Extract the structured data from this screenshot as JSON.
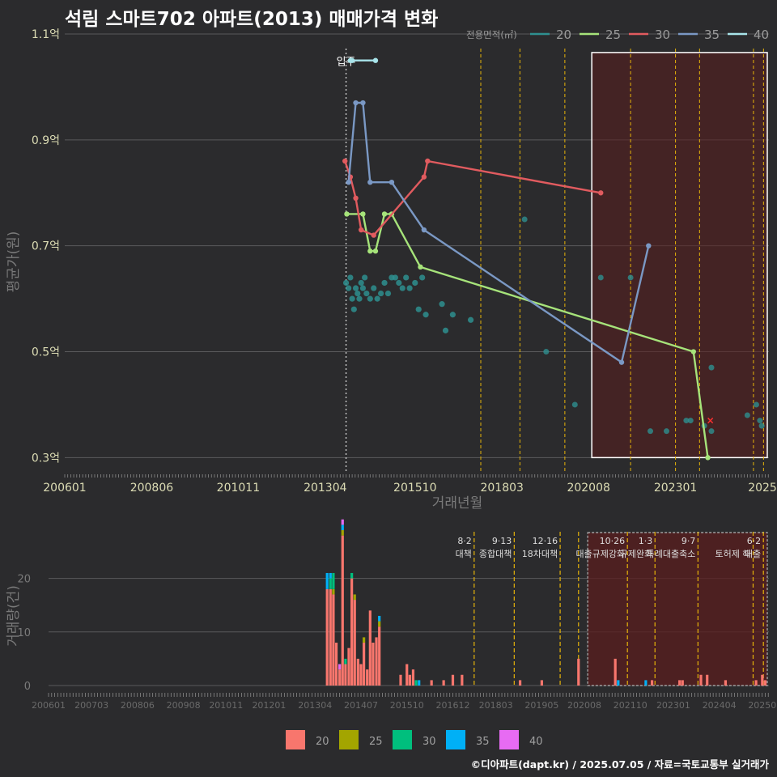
{
  "title": "석림 스마트702 아파트(2013) 매매가격 변화",
  "credit": "©디아파트(dapt.kr) / 2025.07.05 / 자료=국토교통부 실거래가",
  "colors": {
    "20": "#2e8f8f",
    "25": "#a6e37a",
    "30": "#e15b5f",
    "35": "#7a98c4",
    "40": "#a8e4ea",
    "bar20": "#f8766d",
    "bar25": "#a3a500",
    "bar30": "#00bf7d",
    "bar35": "#00b0f6",
    "bar40": "#e76bf3",
    "policy": "#e6b40a",
    "highlight": "#5a1e1e"
  },
  "chart_data": [
    {
      "type": "line",
      "title": "석림 스마트702 아파트(2013) 매매가격 변화",
      "xlabel": "거래년월",
      "ylabel": "평균가(원)",
      "x_unit": "year-fraction",
      "xlim": [
        2006.0,
        2025.6
      ],
      "ylim": [
        0.27,
        1.1
      ],
      "y_ticks": [
        {
          "value": 0.3,
          "label": "0.3억"
        },
        {
          "value": 0.5,
          "label": "0.5억"
        },
        {
          "value": 0.7,
          "label": "0.7억"
        },
        {
          "value": 0.9,
          "label": "0.9억"
        },
        {
          "value": 1.1,
          "label": "1.1억"
        }
      ],
      "x_ticks": [
        {
          "value": 2006.0,
          "label": "200601"
        },
        {
          "value": 2008.42,
          "label": "200806"
        },
        {
          "value": 2010.83,
          "label": "201011"
        },
        {
          "value": 2013.25,
          "label": "201304"
        },
        {
          "value": 2015.75,
          "label": "201510"
        },
        {
          "value": 2018.17,
          "label": "201803"
        },
        {
          "value": 2020.58,
          "label": "202008"
        },
        {
          "value": 2023.0,
          "label": "202301"
        },
        {
          "value": 2025.42,
          "label": "2025"
        }
      ],
      "legend_title": "전용면적(㎡)",
      "legend": [
        "20",
        "25",
        "30",
        "35",
        "40"
      ],
      "move_in_label": "입주",
      "move_in_x": 2013.83,
      "highlight_range": [
        2020.67,
        2025.6
      ],
      "policy_lines": [
        2017.58,
        2018.67,
        2019.92,
        2021.75,
        2023.0,
        2023.67,
        2025.17,
        2025.45
      ],
      "series": [
        {
          "name": "20",
          "color": "#2e8f8f",
          "x": [
            2013.83,
            2013.9,
            2013.95,
            2014.0,
            2014.05,
            2014.1,
            2014.15,
            2014.2,
            2014.25,
            2014.3,
            2014.35,
            2014.4,
            2014.5,
            2014.6,
            2014.7,
            2014.8,
            2014.9,
            2015.0,
            2015.1,
            2015.2,
            2015.3,
            2015.4,
            2015.5,
            2015.6,
            2015.75,
            2015.85,
            2015.95,
            2016.05,
            2016.5,
            2016.6,
            2016.8,
            2017.3
          ],
          "y": [
            0.63,
            0.62,
            0.64,
            0.6,
            0.58,
            0.62,
            0.61,
            0.6,
            0.63,
            0.62,
            0.64,
            0.61,
            0.6,
            0.62,
            0.6,
            0.61,
            0.63,
            0.61,
            0.64,
            0.64,
            0.63,
            0.62,
            0.64,
            0.62,
            0.63,
            0.58,
            0.64,
            0.57,
            0.59,
            0.54,
            0.57,
            0.56
          ]
        },
        {
          "name": "25",
          "color": "#a6e37a",
          "x": [
            2013.85,
            2014.3,
            2014.5,
            2014.65,
            2014.9,
            2015.1,
            2015.9,
            2023.5,
            2023.9
          ],
          "y": [
            0.76,
            0.76,
            0.69,
            0.69,
            0.76,
            0.76,
            0.66,
            0.5,
            0.3
          ]
        },
        {
          "name": "30",
          "color": "#e15b5f",
          "x": [
            2013.8,
            2013.95,
            2014.1,
            2014.25,
            2014.6,
            2016.0,
            2016.1,
            2020.92
          ],
          "y": [
            0.86,
            0.83,
            0.79,
            0.73,
            0.72,
            0.83,
            0.86,
            0.8
          ]
        },
        {
          "name": "35",
          "color": "#7a98c4",
          "x": [
            2013.9,
            2014.1,
            2014.3,
            2014.5,
            2015.1,
            2016.0,
            2021.5,
            2022.25
          ],
          "y": [
            0.82,
            0.97,
            0.97,
            0.82,
            0.82,
            0.73,
            0.48,
            0.7
          ]
        },
        {
          "name": "40",
          "color": "#a8e4ea",
          "x": [
            2013.95,
            2014.0,
            2014.65
          ],
          "y": [
            1.05,
            1.05,
            1.05
          ]
        }
      ],
      "scatter": [
        {
          "x": 2018.8,
          "y": 0.75
        },
        {
          "x": 2019.4,
          "y": 0.5
        },
        {
          "x": 2020.2,
          "y": 0.4
        },
        {
          "x": 2020.92,
          "y": 0.64
        },
        {
          "x": 2021.75,
          "y": 0.64
        },
        {
          "x": 2022.3,
          "y": 0.35
        },
        {
          "x": 2022.75,
          "y": 0.35
        },
        {
          "x": 2023.3,
          "y": 0.37
        },
        {
          "x": 2023.42,
          "y": 0.37
        },
        {
          "x": 2023.8,
          "y": 0.36
        },
        {
          "x": 2024.0,
          "y": 0.47
        },
        {
          "x": 2024.0,
          "y": 0.35
        },
        {
          "x": 2025.0,
          "y": 0.38
        },
        {
          "x": 2025.25,
          "y": 0.4
        },
        {
          "x": 2025.35,
          "y": 0.37
        },
        {
          "x": 2025.4,
          "y": 0.36
        }
      ],
      "latest_marker": {
        "x": 2023.97,
        "y": 0.37
      }
    },
    {
      "type": "bar",
      "title": "",
      "xlabel": "",
      "ylabel": "거래량(건)",
      "xlim": [
        2006.0,
        2025.6
      ],
      "ylim": [
        0,
        29
      ],
      "y_ticks": [
        0,
        10,
        20
      ],
      "x_ticks": [
        {
          "value": 2006.0,
          "label": "200601"
        },
        {
          "value": 2007.17,
          "label": "200703"
        },
        {
          "value": 2008.42,
          "label": "200806"
        },
        {
          "value": 2009.67,
          "label": "200908"
        },
        {
          "value": 2010.83,
          "label": "201011"
        },
        {
          "value": 2012.0,
          "label": "201201"
        },
        {
          "value": 2013.25,
          "label": "201304"
        },
        {
          "value": 2014.5,
          "label": "201407"
        },
        {
          "value": 2015.75,
          "label": "201510"
        },
        {
          "value": 2017.0,
          "label": "201612"
        },
        {
          "value": 2018.17,
          "label": "201803"
        },
        {
          "value": 2019.42,
          "label": "201905"
        },
        {
          "value": 2020.58,
          "label": "202008"
        },
        {
          "value": 2021.83,
          "label": "202110"
        },
        {
          "value": 2023.0,
          "label": "202301"
        },
        {
          "value": 2024.25,
          "label": "202404"
        },
        {
          "value": 2025.42,
          "label": "20250"
        }
      ],
      "legend": [
        "20",
        "25",
        "30",
        "35",
        "40"
      ],
      "highlight_range": [
        2020.67,
        2025.6
      ],
      "policy_lines": [
        {
          "x": 2017.58,
          "date": "8·2",
          "label": "대책"
        },
        {
          "x": 2018.67,
          "date": "9·13",
          "label": "종합대책"
        },
        {
          "x": 2019.92,
          "date": "12·16",
          "label": "18차대책"
        },
        {
          "x": 2020.42,
          "date": "",
          "label": ""
        },
        {
          "x": 2021.75,
          "date": "10·26",
          "label": "대출규제강화"
        },
        {
          "x": 2022.5,
          "date": "1·3",
          "label": "규제완화"
        },
        {
          "x": 2023.67,
          "date": "9·7",
          "label": "특례대출축소"
        },
        {
          "x": 2025.17,
          "date": "",
          "label": "토허제 해"
        },
        {
          "x": 2025.45,
          "date": "6·2",
          "label": "대출"
        }
      ],
      "series": [
        {
          "name": "20",
          "color": "#f8766d",
          "x": [
            2013.58,
            2013.67,
            2013.75,
            2013.83,
            2013.92,
            2014.0,
            2014.08,
            2014.17,
            2014.25,
            2014.33,
            2014.42,
            2014.5,
            2014.58,
            2014.67,
            2014.75,
            2014.83,
            2014.92,
            2015.0,
            2015.58,
            2015.75,
            2015.83,
            2015.92,
            2016.42,
            2016.75,
            2017.0,
            2017.25,
            2018.83,
            2019.42,
            2020.42,
            2021.42,
            2022.42,
            2023.17,
            2023.25,
            2023.75,
            2023.92,
            2024.42,
            2025.25,
            2025.42,
            2025.5
          ],
          "values": [
            18,
            18,
            17,
            8,
            3,
            28,
            4,
            7,
            20,
            16,
            5,
            4,
            8,
            3,
            14,
            8,
            9,
            11,
            2,
            4,
            2,
            3,
            1,
            1,
            2,
            2,
            1,
            1,
            5,
            5,
            1,
            1,
            1,
            2,
            2,
            1,
            1,
            2,
            1
          ]
        },
        {
          "name": "25",
          "color": "#a3a500",
          "x": [
            2013.75,
            2014.0,
            2014.33,
            2014.58,
            2015.0
          ],
          "values": [
            1,
            1,
            1,
            1,
            1
          ]
        },
        {
          "name": "30",
          "color": "#00bf7d",
          "x": [
            2013.67,
            2013.75,
            2014.08,
            2014.25,
            2016.0
          ],
          "values": [
            2,
            3,
            1,
            1,
            1
          ]
        },
        {
          "name": "35",
          "color": "#00b0f6",
          "x": [
            2013.58,
            2013.67,
            2014.0,
            2015.0,
            2016.08,
            2021.5,
            2022.25
          ],
          "values": [
            3,
            1,
            1,
            1,
            1,
            1,
            1
          ]
        },
        {
          "name": "40",
          "color": "#e76bf3",
          "x": [
            2013.92,
            2014.0
          ],
          "values": [
            1,
            1
          ]
        }
      ]
    }
  ]
}
